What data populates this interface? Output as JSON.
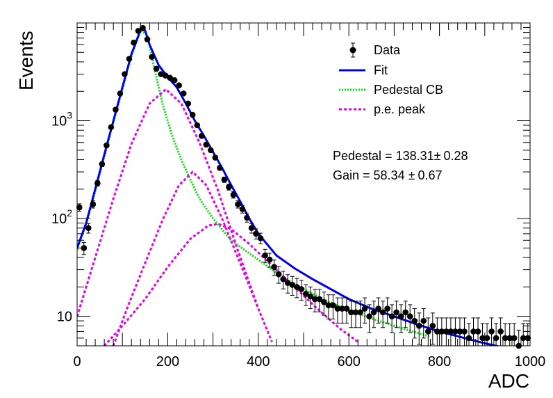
{
  "chart_data": {
    "type": "scatter",
    "xlabel": "ADC",
    "ylabel": "Events",
    "xlim": [
      0,
      1000
    ],
    "ylim": [
      5,
      10000
    ],
    "yscale": "log",
    "grid": false,
    "x_ticks": [
      {
        "value": 0,
        "label": "0"
      },
      {
        "value": 200,
        "label": "200"
      },
      {
        "value": 400,
        "label": "400"
      },
      {
        "value": 600,
        "label": "600"
      },
      {
        "value": 800,
        "label": "800"
      },
      {
        "value": 1000,
        "label": "1000"
      }
    ],
    "y_ticks": [
      {
        "value": 10,
        "base": "10",
        "exp": ""
      },
      {
        "value": 100,
        "base": "10",
        "exp": "2"
      },
      {
        "value": 1000,
        "base": "10",
        "exp": "3"
      }
    ],
    "legend": {
      "placement": "top-right",
      "entries": [
        {
          "label": "Data",
          "kind": "marker",
          "color": "#000000"
        },
        {
          "label": "Fit",
          "kind": "line",
          "color": "#0000e6"
        },
        {
          "label": "Pedestal CB",
          "kind": "dotted",
          "color": "#00e600"
        },
        {
          "label": "p.e. peak",
          "kind": "dashed",
          "color": "#e600e6"
        }
      ]
    },
    "annotations": [
      {
        "text": "Pedestal = 138.31",
        "pm": "±",
        "err": "0.28"
      },
      {
        "text": "Gain = 58.34 ",
        "pm": "±",
        "err": "0.67"
      }
    ],
    "series": [
      {
        "name": "Data",
        "kind": "points",
        "color": "#000000",
        "points": [
          [
            5,
            130
          ],
          [
            15,
            50
          ],
          [
            25,
            80
          ],
          [
            35,
            140
          ],
          [
            45,
            230
          ],
          [
            55,
            360
          ],
          [
            65,
            560
          ],
          [
            75,
            860
          ],
          [
            85,
            1300
          ],
          [
            95,
            1900
          ],
          [
            105,
            3000
          ],
          [
            115,
            4300
          ],
          [
            125,
            6300
          ],
          [
            135,
            8300
          ],
          [
            145,
            8900
          ],
          [
            155,
            6800
          ],
          [
            165,
            4500
          ],
          [
            175,
            3400
          ],
          [
            185,
            3000
          ],
          [
            195,
            2900
          ],
          [
            205,
            2750
          ],
          [
            215,
            2600
          ],
          [
            225,
            2300
          ],
          [
            235,
            1900
          ],
          [
            245,
            1500
          ],
          [
            255,
            1150
          ],
          [
            265,
            900
          ],
          [
            275,
            700
          ],
          [
            285,
            570
          ],
          [
            295,
            500
          ],
          [
            305,
            420
          ],
          [
            315,
            330
          ],
          [
            325,
            250
          ],
          [
            335,
            210
          ],
          [
            345,
            175
          ],
          [
            355,
            140
          ],
          [
            365,
            125
          ],
          [
            375,
            102
          ],
          [
            385,
            80
          ],
          [
            395,
            70
          ],
          [
            405,
            63
          ],
          [
            415,
            42
          ],
          [
            425,
            38
          ],
          [
            435,
            32
          ],
          [
            445,
            27
          ],
          [
            455,
            24
          ],
          [
            465,
            22
          ],
          [
            475,
            21
          ],
          [
            485,
            20
          ],
          [
            495,
            19
          ],
          [
            505,
            17
          ],
          [
            515,
            16
          ],
          [
            525,
            15
          ],
          [
            535,
            15
          ],
          [
            545,
            14
          ],
          [
            555,
            13
          ],
          [
            565,
            13
          ],
          [
            575,
            12
          ],
          [
            585,
            12
          ],
          [
            595,
            12
          ],
          [
            605,
            11
          ],
          [
            615,
            11
          ],
          [
            625,
            11
          ],
          [
            635,
            12
          ],
          [
            645,
            10
          ],
          [
            655,
            11
          ],
          [
            665,
            12
          ],
          [
            675,
            11
          ],
          [
            685,
            12
          ],
          [
            695,
            10
          ],
          [
            705,
            11
          ],
          [
            715,
            10
          ],
          [
            725,
            11
          ],
          [
            735,
            10
          ],
          [
            745,
            9
          ],
          [
            755,
            8
          ],
          [
            765,
            9
          ],
          [
            775,
            7
          ],
          [
            785,
            8
          ],
          [
            795,
            7
          ],
          [
            805,
            7
          ],
          [
            815,
            7
          ],
          [
            825,
            7
          ],
          [
            835,
            7
          ],
          [
            845,
            7
          ],
          [
            855,
            7
          ],
          [
            865,
            6
          ],
          [
            875,
            7
          ],
          [
            885,
            7
          ],
          [
            895,
            6
          ],
          [
            905,
            6
          ],
          [
            915,
            7
          ],
          [
            925,
            6
          ],
          [
            935,
            7
          ],
          [
            945,
            6
          ],
          [
            955,
            6
          ],
          [
            965,
            6
          ],
          [
            975,
            5
          ],
          [
            985,
            6
          ],
          [
            995,
            6
          ]
        ]
      },
      {
        "name": "Fit",
        "kind": "line",
        "color": "#0000e6",
        "points": [
          [
            0,
            50
          ],
          [
            20,
            90
          ],
          [
            40,
            200
          ],
          [
            60,
            450
          ],
          [
            80,
            1000
          ],
          [
            100,
            2200
          ],
          [
            120,
            4800
          ],
          [
            140,
            8500
          ],
          [
            150,
            8400
          ],
          [
            160,
            6000
          ],
          [
            180,
            3700
          ],
          [
            200,
            2800
          ],
          [
            220,
            2200
          ],
          [
            240,
            1500
          ],
          [
            260,
            1000
          ],
          [
            280,
            700
          ],
          [
            300,
            480
          ],
          [
            320,
            330
          ],
          [
            340,
            220
          ],
          [
            360,
            150
          ],
          [
            380,
            100
          ],
          [
            400,
            70
          ],
          [
            440,
            42
          ],
          [
            480,
            31
          ],
          [
            520,
            24
          ],
          [
            560,
            19
          ],
          [
            600,
            15
          ],
          [
            650,
            12
          ],
          [
            700,
            10
          ],
          [
            750,
            8.3
          ],
          [
            800,
            7.0
          ],
          [
            850,
            6.1
          ],
          [
            900,
            5.3
          ],
          [
            950,
            4.7
          ],
          [
            1000,
            4.2
          ]
        ]
      },
      {
        "name": "Pedestal CB",
        "kind": "dotted",
        "color": "#00e600",
        "points": [
          [
            0,
            48
          ],
          [
            20,
            88
          ],
          [
            40,
            190
          ],
          [
            60,
            430
          ],
          [
            80,
            960
          ],
          [
            100,
            2100
          ],
          [
            120,
            4600
          ],
          [
            140,
            8300
          ],
          [
            155,
            7600
          ],
          [
            170,
            3500
          ],
          [
            190,
            1400
          ],
          [
            210,
            700
          ],
          [
            230,
            400
          ],
          [
            250,
            250
          ],
          [
            270,
            160
          ],
          [
            300,
            100
          ],
          [
            340,
            60
          ],
          [
            400,
            38
          ],
          [
            450,
            26
          ],
          [
            500,
            19
          ],
          [
            550,
            14.5
          ],
          [
            600,
            11.5
          ],
          [
            650,
            9.5
          ],
          [
            700,
            8.0
          ],
          [
            750,
            6.8
          ],
          [
            780,
            6.2
          ]
        ]
      },
      {
        "name": "p.e. peak",
        "kind": "dashed",
        "color": "#e600e6",
        "points": [
          [
            0,
            10
          ],
          [
            40,
            40
          ],
          [
            80,
            160
          ],
          [
            120,
            580
          ],
          [
            160,
            1500
          ],
          [
            196,
            2100
          ],
          [
            230,
            1500
          ],
          [
            270,
            600
          ],
          [
            310,
            200
          ],
          [
            350,
            55
          ],
          [
            380,
            22
          ],
          [
            400,
            12
          ]
        ]
      },
      {
        "name": "p.e. peak",
        "kind": "dashed",
        "color": "#e600e6",
        "points": [
          [
            80,
            5
          ],
          [
            110,
            12
          ],
          [
            150,
            35
          ],
          [
            190,
            100
          ],
          [
            225,
            220
          ],
          [
            255,
            300
          ],
          [
            285,
            220
          ],
          [
            320,
            100
          ],
          [
            360,
            35
          ],
          [
            400,
            12
          ],
          [
            430,
            5.5
          ]
        ]
      },
      {
        "name": "p.e. peak",
        "kind": "dashed",
        "color": "#e600e6",
        "points": [
          [
            60,
            5
          ],
          [
            100,
            8
          ],
          [
            150,
            15
          ],
          [
            200,
            32
          ],
          [
            250,
            62
          ],
          [
            290,
            85
          ],
          [
            312,
            88
          ],
          [
            340,
            78
          ],
          [
            380,
            55
          ],
          [
            430,
            33
          ],
          [
            480,
            20
          ],
          [
            530,
            12
          ],
          [
            580,
            7.5
          ],
          [
            620,
            5.5
          ]
        ]
      }
    ]
  }
}
